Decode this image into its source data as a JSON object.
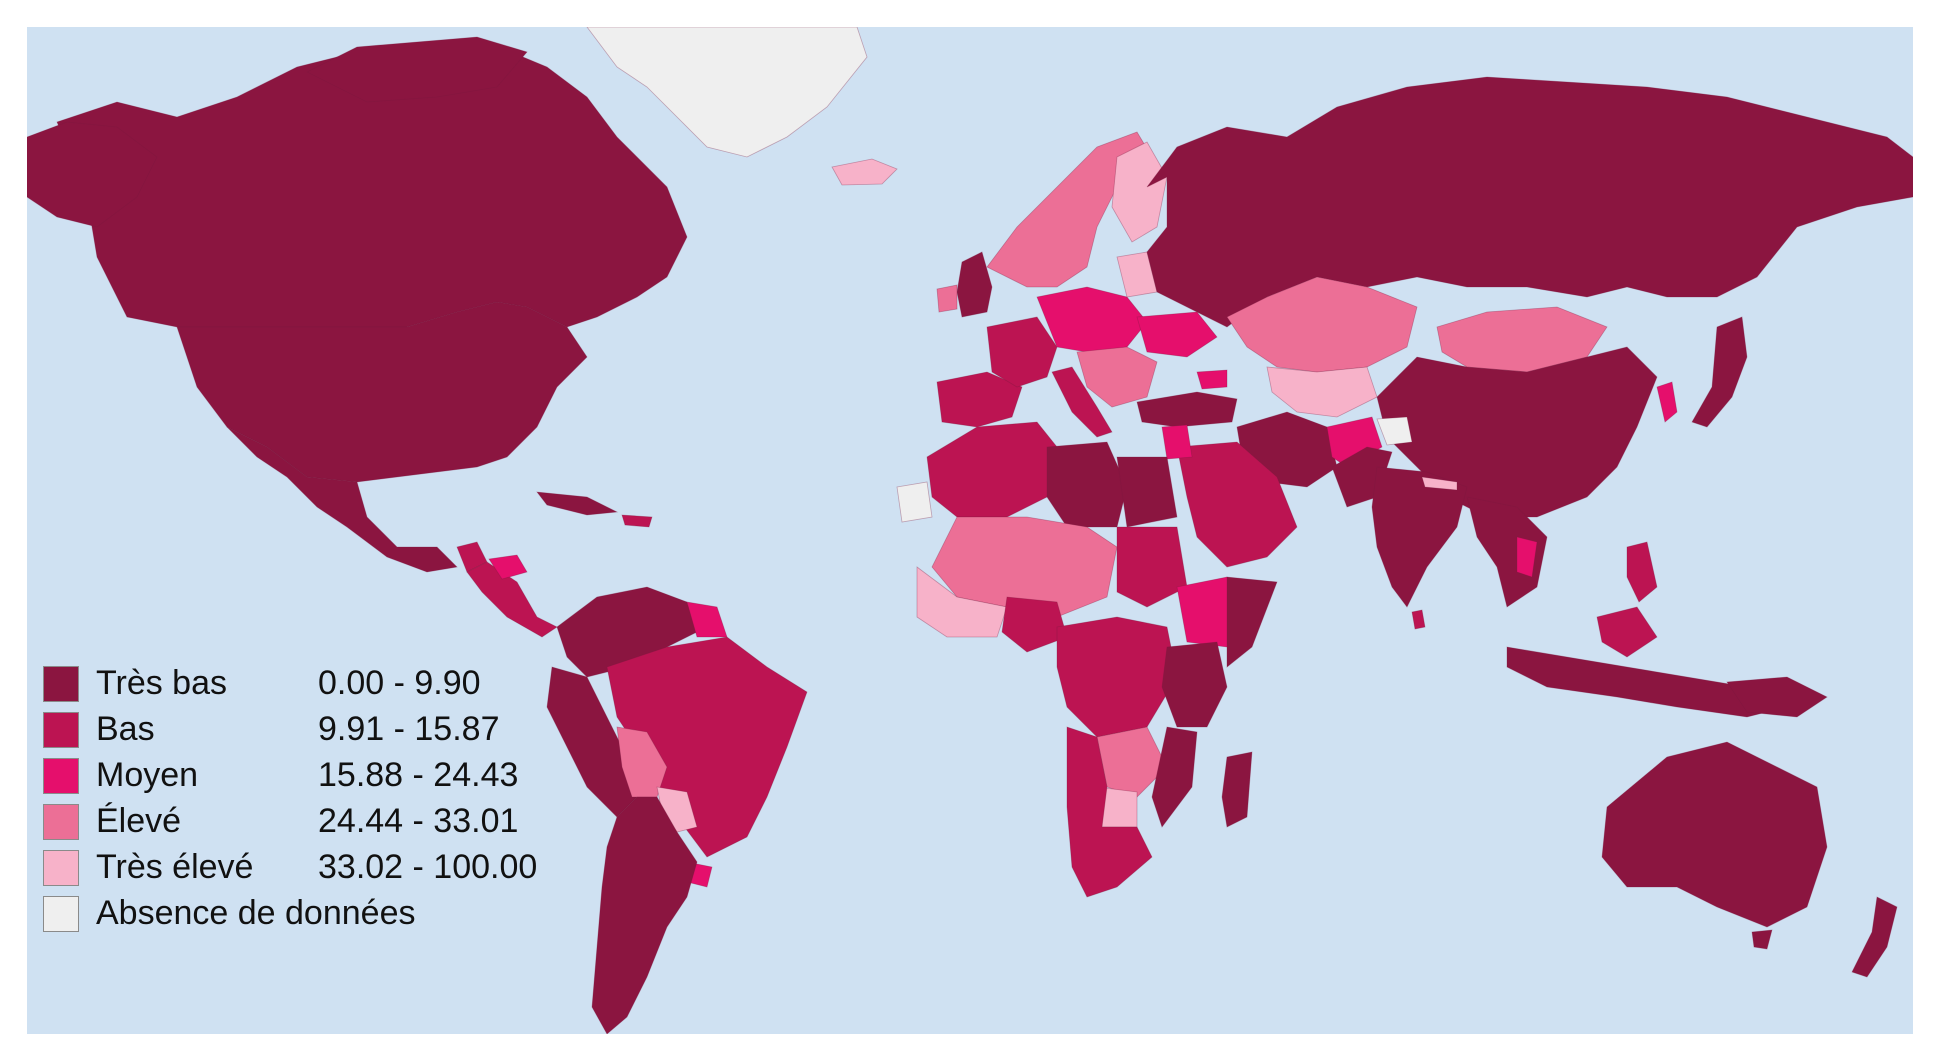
{
  "colors": {
    "ocean": "#cfe1f2",
    "tres_bas": "#8b1540",
    "bas": "#bc1452",
    "moyen": "#e50f6c",
    "eleve": "#ec6f96",
    "tres_eleve": "#f7b2c9",
    "absence": "#efefef"
  },
  "legend": [
    {
      "label": "Très bas",
      "range": "0.00 - 9.90",
      "color": "#8b1540"
    },
    {
      "label": "Bas",
      "range": "9.91 - 15.87",
      "color": "#bc1452"
    },
    {
      "label": "Moyen",
      "range": "15.88 - 24.43",
      "color": "#e50f6c"
    },
    {
      "label": "Élevé",
      "range": "24.44 - 33.01",
      "color": "#ec6f96"
    },
    {
      "label": "Très élevé",
      "range": "33.02 - 100.00",
      "color": "#f7b2c9"
    },
    {
      "label": "Absence de données",
      "range": "",
      "color": "#efefef"
    }
  ]
}
